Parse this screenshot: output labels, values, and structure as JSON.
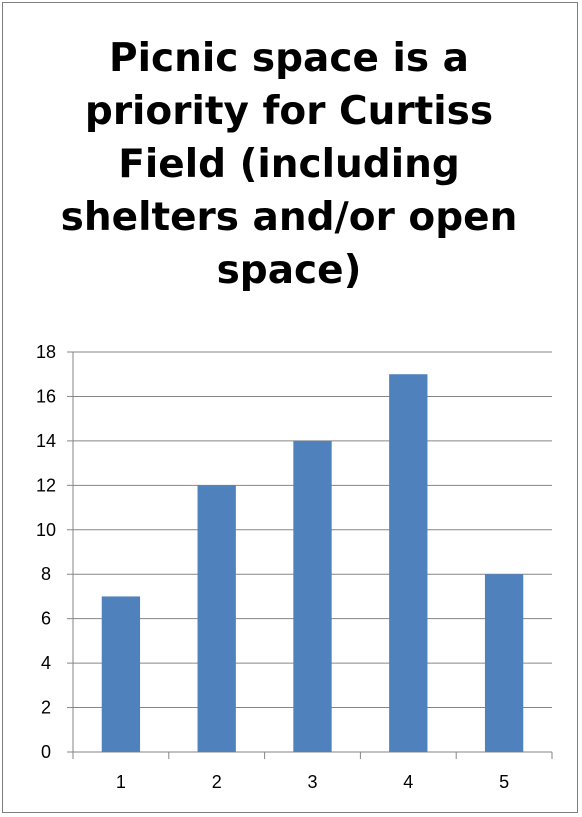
{
  "chart_data": {
    "type": "bar",
    "title_lines": [
      "Picnic space is a",
      "priority for Curtiss",
      "Field (including",
      "shelters and/or open",
      "space)"
    ],
    "categories": [
      "1",
      "2",
      "3",
      "4",
      "5"
    ],
    "values": [
      7,
      12,
      14,
      17,
      8
    ],
    "y_ticks": [
      "0",
      "2",
      "4",
      "6",
      "8",
      "10",
      "12",
      "14",
      "16",
      "18"
    ],
    "ylim": [
      0,
      18
    ],
    "grid": true,
    "legend": "none",
    "colors": {
      "bar": "#4f81bd",
      "grid": "#868686",
      "axis": "#868686"
    }
  }
}
